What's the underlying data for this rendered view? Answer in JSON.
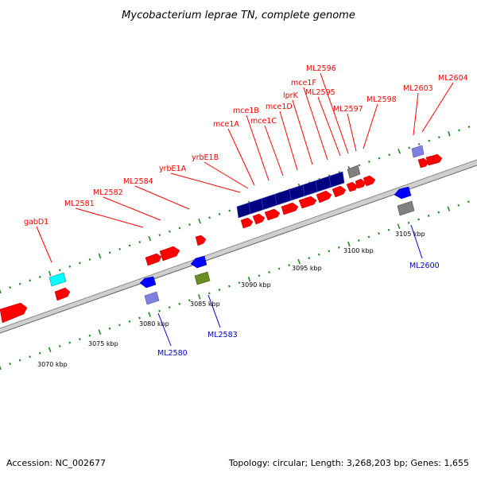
{
  "header": {
    "title": "Mycobacterium leprae TN, complete genome"
  },
  "footer": {
    "accession": "Accession: NC_002677",
    "topology": "Topology: circular; Length: 3,268,203 bp; Genes: 1,655"
  },
  "scale_labels": [
    "3070 kbp",
    "3075 kbp",
    "3080 kbp",
    "3085 kbp",
    "3090 kbp",
    "3095 kbp",
    "3100 kbp",
    "3105 kbp"
  ],
  "top_labels": [
    "gabD1",
    "ML2581",
    "ML2582",
    "ML2584",
    "yrbE1A",
    "yrbE1B",
    "mce1A",
    "mce1B",
    "mce1C",
    "mce1D",
    "lprK",
    "mce1F",
    "ML2595",
    "ML2596",
    "ML2597",
    "ML2598",
    "ML2603",
    "ML2604"
  ],
  "bottom_labels": [
    "ML2580",
    "ML2583",
    "ML2600"
  ],
  "colors": {
    "forward_gene": "#ff0000",
    "reverse_gene": "#0000ff",
    "operon": "#000080",
    "cyan_gene": "#00ffff",
    "grey_gene": "#808080",
    "lavender_gene": "#8080e0",
    "olive_gene": "#6b8e23",
    "tick": "#228b22",
    "backbone": "#999999"
  }
}
